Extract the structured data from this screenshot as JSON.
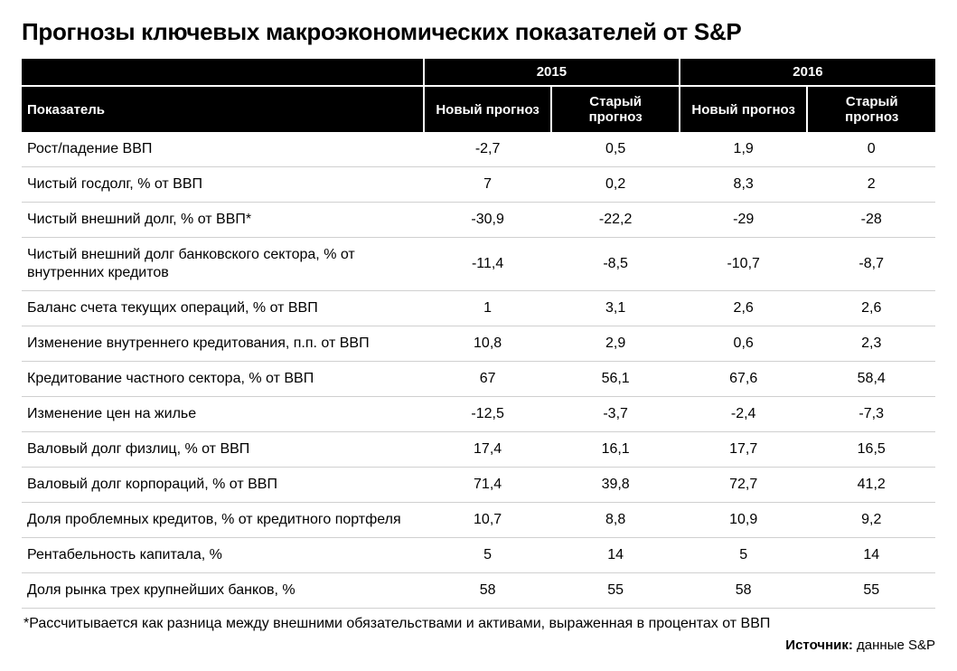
{
  "title": "Прогнозы ключевых макроэкономических показателей от S&P",
  "table": {
    "type": "table",
    "header_bg": "#000000",
    "header_fg": "#ffffff",
    "row_border": "#d0d0d0",
    "years": [
      "2015",
      "2016"
    ],
    "subheaders": [
      "Новый прогноз",
      "Старый прогноз",
      "Новый прогноз",
      "Старый прогноз"
    ],
    "indicator_header": "Показатель",
    "rows": [
      {
        "label": "Рост/падение ВВП",
        "v": [
          "-2,7",
          "0,5",
          "1,9",
          "0"
        ]
      },
      {
        "label": "Чистый госдолг, % от ВВП",
        "v": [
          "7",
          "0,2",
          "8,3",
          "2"
        ]
      },
      {
        "label": "Чистый внешний долг, % от ВВП*",
        "v": [
          "-30,9",
          "-22,2",
          "-29",
          "-28"
        ]
      },
      {
        "label": "Чистый внешний долг банковского сектора, % от внутренних кредитов",
        "v": [
          "-11,4",
          "-8,5",
          "-10,7",
          "-8,7"
        ]
      },
      {
        "label": "Баланс счета текущих операций, % от ВВП",
        "v": [
          "1",
          "3,1",
          "2,6",
          "2,6"
        ]
      },
      {
        "label": "Изменение внутреннего кредитования, п.п. от ВВП",
        "v": [
          "10,8",
          "2,9",
          "0,6",
          "2,3"
        ]
      },
      {
        "label": "Кредитование частного сектора, % от ВВП",
        "v": [
          "67",
          "56,1",
          "67,6",
          "58,4"
        ]
      },
      {
        "label": "Изменение цен на жилье",
        "v": [
          "-12,5",
          "-3,7",
          "-2,4",
          "-7,3"
        ]
      },
      {
        "label": "Валовый долг физлиц, % от ВВП",
        "v": [
          "17,4",
          "16,1",
          "17,7",
          "16,5"
        ]
      },
      {
        "label": "Валовый долг корпораций, % от ВВП",
        "v": [
          "71,4",
          "39,8",
          "72,7",
          "41,2"
        ]
      },
      {
        "label": "Доля проблемных кредитов, % от кредитного портфеля",
        "v": [
          "10,7",
          "8,8",
          "10,9",
          "9,2"
        ]
      },
      {
        "label": "Рентабельность капитала, %",
        "v": [
          "5",
          "14",
          "5",
          "14"
        ]
      },
      {
        "label": "Доля рынка трех крупнейших банков, %",
        "v": [
          "58",
          "55",
          "58",
          "55"
        ]
      }
    ]
  },
  "footnote": "*Рассчитывается как разница между внешними обязательствами и активами, выраженная в процентах от ВВП",
  "source": {
    "label": "Источник:",
    "value": "данные S&P"
  }
}
